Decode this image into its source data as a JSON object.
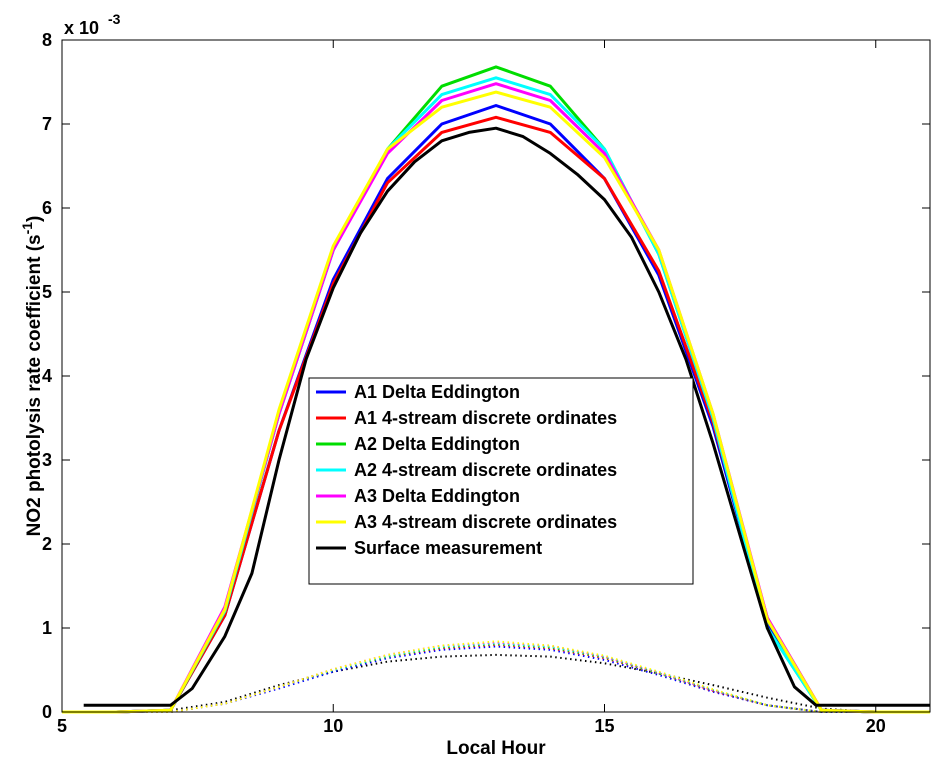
{
  "chart_data": {
    "type": "line",
    "xlabel": "Local Hour",
    "ylabel_main": "NO2 photolysis rate coefficient (s",
    "ylabel_sup": "-1",
    "ylabel_end": ")",
    "y_exponent_base": "x 10",
    "y_exponent_power": "-3",
    "xlim": [
      5,
      21
    ],
    "ylim": [
      0,
      8
    ],
    "xticks": [
      5,
      10,
      15,
      20
    ],
    "yticks": [
      0,
      1,
      2,
      3,
      4,
      5,
      6,
      7,
      8
    ],
    "legend_position": "center",
    "grid": false,
    "series": [
      {
        "name": "A1 Delta Eddington",
        "color": "#0000ff",
        "style": "solid",
        "x": [
          5,
          6,
          7,
          8,
          9,
          10,
          11,
          12,
          13,
          14,
          15,
          16,
          17,
          18,
          19,
          20,
          21
        ],
        "y": [
          0,
          0,
          0.02,
          1.15,
          3.35,
          5.15,
          6.35,
          7.0,
          7.22,
          7.0,
          6.35,
          5.2,
          3.4,
          1.05,
          0.02,
          0,
          0
        ]
      },
      {
        "name": "A1 4-stream discrete ordinates",
        "color": "#ff0000",
        "style": "solid",
        "x": [
          5,
          6,
          7,
          8,
          9,
          10,
          11,
          12,
          13,
          14,
          15,
          16,
          17,
          18,
          19,
          20,
          21
        ],
        "y": [
          0,
          0,
          0.02,
          1.15,
          3.35,
          5.1,
          6.3,
          6.9,
          7.08,
          6.9,
          6.35,
          5.25,
          3.45,
          1.12,
          0.02,
          0,
          0
        ]
      },
      {
        "name": "A2 Delta Eddington",
        "color": "#00dd00",
        "style": "solid",
        "x": [
          5,
          6,
          7,
          8,
          9,
          10,
          11,
          12,
          13,
          14,
          15,
          16,
          17,
          18,
          19,
          20,
          21
        ],
        "y": [
          0,
          0,
          0.02,
          1.2,
          3.55,
          5.5,
          6.7,
          7.45,
          7.68,
          7.45,
          6.7,
          5.45,
          3.5,
          1.0,
          0.02,
          0,
          0
        ]
      },
      {
        "name": "A2 4-stream discrete ordinates",
        "color": "#00ffff",
        "style": "solid",
        "x": [
          5,
          6,
          7,
          8,
          9,
          10,
          11,
          12,
          13,
          14,
          15,
          16,
          17,
          18,
          19,
          20,
          21
        ],
        "y": [
          0,
          0,
          0.02,
          1.2,
          3.55,
          5.5,
          6.7,
          7.35,
          7.55,
          7.35,
          6.7,
          5.45,
          3.5,
          1.0,
          0.02,
          0,
          0
        ]
      },
      {
        "name": "A3 Delta Eddington",
        "color": "#ff00ff",
        "style": "solid",
        "x": [
          5,
          6,
          7,
          8,
          9,
          10,
          11,
          12,
          13,
          14,
          15,
          16,
          17,
          18,
          19,
          20,
          21
        ],
        "y": [
          0,
          0,
          0.02,
          1.25,
          3.55,
          5.5,
          6.65,
          7.28,
          7.48,
          7.28,
          6.65,
          5.5,
          3.55,
          1.12,
          0.02,
          0,
          0
        ]
      },
      {
        "name": "A3 4-stream discrete ordinates",
        "color": "#ffff00",
        "style": "solid",
        "x": [
          5,
          6,
          7,
          8,
          9,
          10,
          11,
          12,
          13,
          14,
          15,
          16,
          17,
          18,
          19,
          20,
          21
        ],
        "y": [
          0,
          0,
          0.02,
          1.22,
          3.6,
          5.55,
          6.7,
          7.2,
          7.38,
          7.2,
          6.6,
          5.5,
          3.55,
          1.1,
          0.02,
          0,
          0
        ]
      },
      {
        "name": "Surface measurement",
        "color": "#000000",
        "style": "solid",
        "x": [
          5.4,
          7.0,
          7.4,
          8.0,
          8.5,
          9.0,
          9.5,
          10.0,
          10.5,
          11.0,
          11.5,
          12.0,
          12.5,
          13.0,
          13.5,
          14.0,
          14.5,
          15.0,
          15.5,
          16.0,
          16.5,
          17.0,
          17.5,
          18.0,
          18.5,
          18.9,
          19.5,
          20.5,
          21.0
        ],
        "y": [
          0.08,
          0.08,
          0.28,
          0.9,
          1.65,
          3.0,
          4.2,
          5.05,
          5.7,
          6.2,
          6.55,
          6.8,
          6.9,
          6.95,
          6.85,
          6.65,
          6.4,
          6.1,
          5.65,
          5.0,
          4.2,
          3.2,
          2.1,
          1.0,
          0.3,
          0.08,
          0.08,
          0.08,
          0.08
        ]
      },
      {
        "color": "#000000",
        "style": "dotted",
        "x": [
          6,
          7,
          8,
          9,
          10,
          11,
          12,
          13,
          14,
          15,
          16,
          17,
          18,
          19,
          20,
          21
        ],
        "y": [
          0,
          0.02,
          0.12,
          0.32,
          0.48,
          0.6,
          0.66,
          0.68,
          0.66,
          0.58,
          0.46,
          0.32,
          0.17,
          0.04,
          0,
          0
        ]
      },
      {
        "color": "#0000ff",
        "style": "dotted",
        "x": [
          6,
          7,
          8,
          9,
          10,
          11,
          12,
          13,
          14,
          15,
          16,
          17,
          18,
          19,
          20
        ],
        "y": [
          0,
          0,
          0.1,
          0.28,
          0.48,
          0.64,
          0.74,
          0.78,
          0.74,
          0.62,
          0.44,
          0.24,
          0.08,
          0,
          0
        ]
      },
      {
        "color": "#ff0000",
        "style": "dotted",
        "x": [
          6,
          7,
          8,
          9,
          10,
          11,
          12,
          13,
          14,
          15,
          16,
          17,
          18,
          19,
          20
        ],
        "y": [
          0,
          0,
          0.1,
          0.3,
          0.5,
          0.66,
          0.76,
          0.8,
          0.76,
          0.64,
          0.46,
          0.25,
          0.08,
          0,
          0
        ]
      },
      {
        "color": "#00dd00",
        "style": "dotted",
        "x": [
          6,
          7,
          8,
          9,
          10,
          11,
          12,
          13,
          14,
          15,
          16,
          17,
          18,
          19,
          20
        ],
        "y": [
          0,
          0,
          0.1,
          0.3,
          0.5,
          0.66,
          0.77,
          0.81,
          0.77,
          0.65,
          0.46,
          0.26,
          0.08,
          0,
          0
        ]
      },
      {
        "color": "#00ffff",
        "style": "dotted",
        "x": [
          6,
          7,
          8,
          9,
          10,
          11,
          12,
          13,
          14,
          15,
          16,
          17,
          18,
          19,
          20
        ],
        "y": [
          0,
          0,
          0.1,
          0.3,
          0.5,
          0.67,
          0.78,
          0.82,
          0.78,
          0.66,
          0.47,
          0.26,
          0.08,
          0,
          0
        ]
      },
      {
        "color": "#ff00ff",
        "style": "dotted",
        "x": [
          6,
          7,
          8,
          9,
          10,
          11,
          12,
          13,
          14,
          15,
          16,
          17,
          18,
          19,
          20
        ],
        "y": [
          0,
          0,
          0.1,
          0.3,
          0.51,
          0.68,
          0.79,
          0.83,
          0.79,
          0.66,
          0.47,
          0.26,
          0.08,
          0,
          0
        ]
      },
      {
        "color": "#ffff00",
        "style": "dotted",
        "x": [
          6,
          7,
          8,
          9,
          10,
          11,
          12,
          13,
          14,
          15,
          16,
          17,
          18,
          19,
          20
        ],
        "y": [
          0,
          0,
          0.1,
          0.3,
          0.51,
          0.68,
          0.79,
          0.84,
          0.79,
          0.67,
          0.48,
          0.27,
          0.08,
          0,
          0
        ]
      }
    ]
  }
}
